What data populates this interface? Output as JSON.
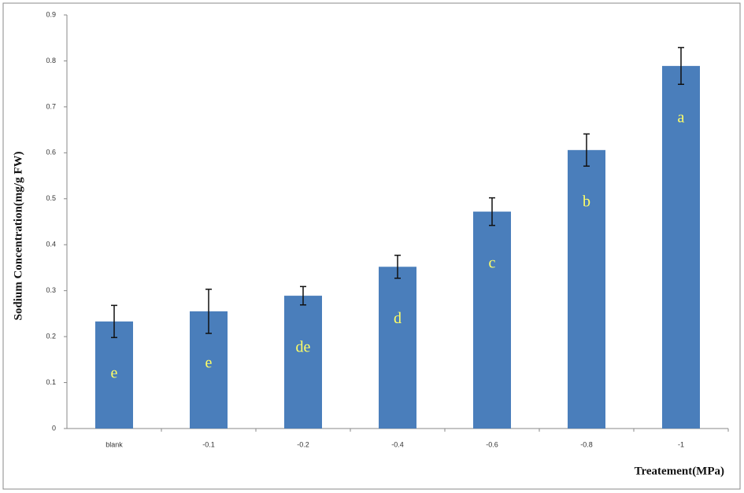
{
  "chart_data": {
    "type": "bar",
    "categories": [
      "blank",
      "-0.1",
      "-0.2",
      "-0.4",
      "-0.6",
      "-0.8",
      "-1"
    ],
    "values": [
      0.233,
      0.255,
      0.289,
      0.352,
      0.472,
      0.606,
      0.789
    ],
    "errors": [
      0.035,
      0.048,
      0.02,
      0.025,
      0.03,
      0.035,
      0.04
    ],
    "letters": [
      "e",
      "e",
      "de",
      "d",
      "c",
      "b",
      "a"
    ],
    "color": "#4a7ebb",
    "ylim": [
      0,
      0.9
    ],
    "yticks": [
      0,
      0.1,
      0.2,
      0.3,
      0.4,
      0.5,
      0.6,
      0.7,
      0.8,
      0.9
    ],
    "y_label": "Sodium Concentration(mg/g FW)",
    "x_label": "Treatement(MPa)",
    "grid": false
  }
}
